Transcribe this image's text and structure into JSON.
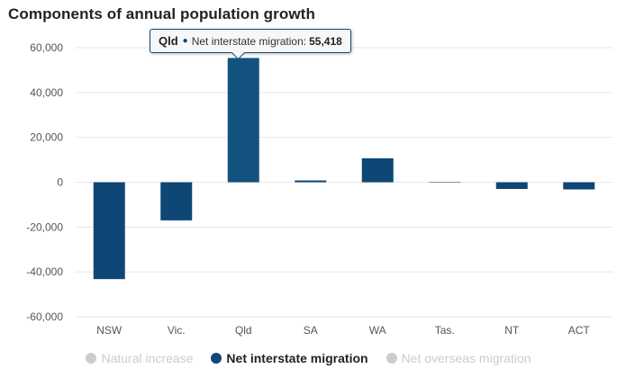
{
  "chart_data": {
    "type": "bar",
    "title": "Components of annual population growth",
    "categories": [
      "NSW",
      "Vic.",
      "Qld",
      "SA",
      "WA",
      "Tas.",
      "NT",
      "ACT"
    ],
    "series": [
      {
        "name": "Net interstate migration",
        "color": "#0e4775",
        "values": [
          -43200,
          -17000,
          55418,
          800,
          10700,
          -200,
          -3000,
          -3200
        ]
      }
    ],
    "y_ticks": [
      "60,000",
      "40,000",
      "20,000",
      "0",
      "-20,000",
      "-40,000",
      "-60,000"
    ],
    "ylim": [
      -60000,
      60000
    ],
    "xlabel": "",
    "ylabel": "",
    "grid": true
  },
  "legend": {
    "items": [
      {
        "label": "Natural increase",
        "color": "#cccccc",
        "active": false
      },
      {
        "label": "Net interstate migration",
        "color": "#0e4775",
        "active": true
      },
      {
        "label": "Net overseas migration",
        "color": "#cccccc",
        "active": false
      }
    ]
  },
  "tooltip": {
    "category": "Qld",
    "dot": "●",
    "series": "Net interstate migration:",
    "value": "55,418"
  }
}
